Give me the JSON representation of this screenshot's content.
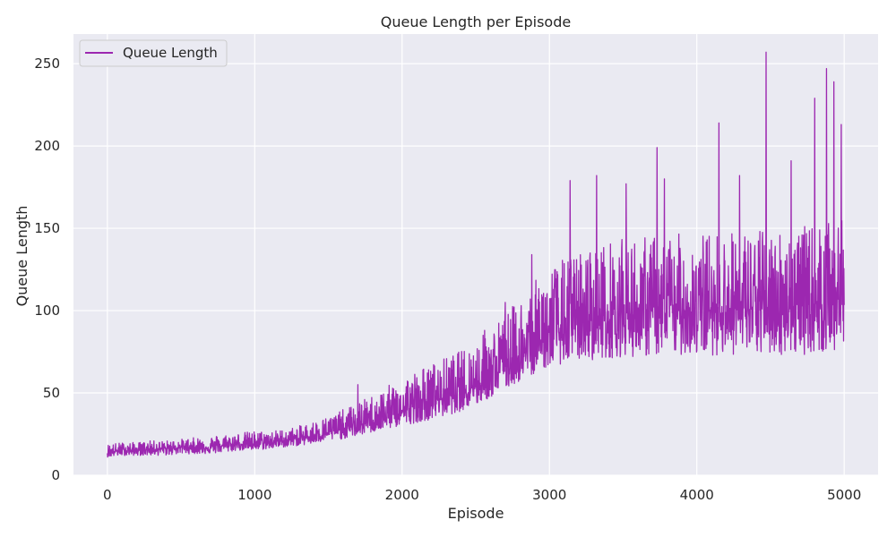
{
  "chart_data": {
    "type": "line",
    "title": "Queue Length per Episode",
    "xlabel": "Episode",
    "ylabel": "Queue Length",
    "xlim": [
      -230,
      5230
    ],
    "ylim": [
      0,
      268
    ],
    "xticks": [
      0,
      1000,
      2000,
      3000,
      4000,
      5000
    ],
    "yticks": [
      0,
      50,
      100,
      150,
      200,
      250
    ],
    "grid": true,
    "legend": {
      "position": "top-left",
      "entries": [
        "Queue Length"
      ]
    },
    "colors": {
      "background": "#eaeaf2",
      "grid": "#ffffff",
      "line": "#9c27b0"
    },
    "series": [
      {
        "name": "Queue Length",
        "x": [
          0,
          100,
          200,
          300,
          400,
          500,
          600,
          700,
          800,
          900,
          1000,
          1100,
          1200,
          1300,
          1400,
          1500,
          1600,
          1700,
          1800,
          1900,
          2000,
          2100,
          2200,
          2300,
          2400,
          2500,
          2600,
          2700,
          2800,
          2900,
          3000,
          3100,
          3200,
          3300,
          3400,
          3500,
          3600,
          3700,
          3800,
          3900,
          4000,
          4100,
          4200,
          4300,
          4400,
          4500,
          4600,
          4700,
          4800,
          4900,
          5000
        ],
        "mean": [
          14,
          15,
          15,
          16,
          16,
          17,
          17,
          17,
          18,
          19,
          19,
          20,
          21,
          22,
          24,
          26,
          28,
          30,
          33,
          36,
          39,
          42,
          45,
          48,
          51,
          55,
          60,
          66,
          72,
          78,
          84,
          88,
          92,
          94,
          96,
          97,
          98,
          99,
          100,
          100,
          100,
          100,
          101,
          101,
          101,
          102,
          102,
          103,
          104,
          105,
          108
        ],
        "low": [
          11,
          12,
          12,
          12,
          12,
          13,
          13,
          13,
          14,
          15,
          15,
          16,
          17,
          18,
          19,
          21,
          22,
          24,
          26,
          28,
          30,
          32,
          34,
          36,
          39,
          42,
          47,
          52,
          57,
          62,
          66,
          68,
          70,
          70,
          71,
          72,
          72,
          72,
          73,
          73,
          73,
          73,
          73,
          73,
          73,
          73,
          73,
          73,
          74,
          74,
          75
        ],
        "high": [
          19,
          20,
          20,
          21,
          21,
          22,
          23,
          24,
          25,
          26,
          27,
          27,
          28,
          30,
          33,
          36,
          40,
          44,
          49,
          54,
          60,
          64,
          68,
          72,
          76,
          82,
          90,
          98,
          108,
          118,
          127,
          132,
          136,
          140,
          142,
          144,
          145,
          146,
          146,
          147,
          147,
          148,
          148,
          149,
          149,
          150,
          150,
          151,
          152,
          153,
          155
        ],
        "peaks": [
          {
            "x": 1700,
            "y": 55
          },
          {
            "x": 2180,
            "y": 64
          },
          {
            "x": 2560,
            "y": 88
          },
          {
            "x": 2700,
            "y": 105
          },
          {
            "x": 2880,
            "y": 134
          },
          {
            "x": 3140,
            "y": 179
          },
          {
            "x": 3320,
            "y": 182
          },
          {
            "x": 3520,
            "y": 177
          },
          {
            "x": 3730,
            "y": 199
          },
          {
            "x": 3780,
            "y": 180
          },
          {
            "x": 4150,
            "y": 214
          },
          {
            "x": 4290,
            "y": 182
          },
          {
            "x": 4470,
            "y": 257
          },
          {
            "x": 4640,
            "y": 191
          },
          {
            "x": 4800,
            "y": 229
          },
          {
            "x": 4880,
            "y": 247
          },
          {
            "x": 4930,
            "y": 239
          },
          {
            "x": 4980,
            "y": 213
          }
        ]
      }
    ]
  }
}
